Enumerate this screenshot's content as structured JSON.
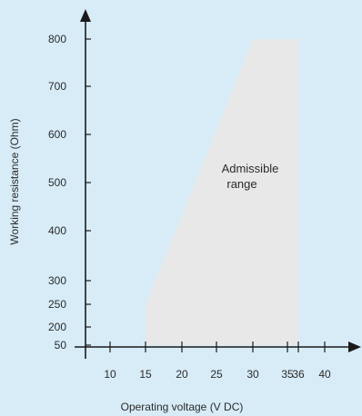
{
  "chart_data": {
    "type": "area",
    "title": "",
    "xlabel": "Operating voltage  (V DC)",
    "ylabel": "Working resistance  (Ohm)",
    "x_ticks": [
      10,
      15,
      20,
      25,
      30,
      35,
      36,
      40
    ],
    "y_ticks": [
      50,
      200,
      250,
      300,
      400,
      500,
      600,
      700,
      800
    ],
    "region": {
      "label_lines": [
        "Admissible",
        "range"
      ],
      "polygon": [
        {
          "x": 15,
          "y": 50
        },
        {
          "x": 15,
          "y": 250
        },
        {
          "x": 30,
          "y": 800
        },
        {
          "x": 36,
          "y": 800
        },
        {
          "x": 36,
          "y": 50
        }
      ],
      "color": "#e8e8e8"
    },
    "axis_color": "#1a1a1a",
    "grid": false
  }
}
